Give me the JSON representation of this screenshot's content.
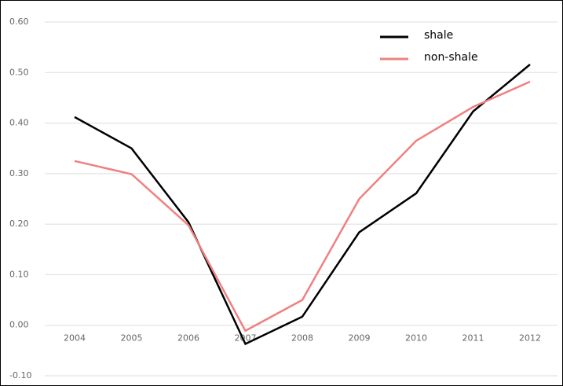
{
  "chart_data": {
    "type": "line",
    "categories": [
      "2004",
      "2005",
      "2006",
      "2007",
      "2008",
      "2009",
      "2010",
      "2011",
      "2012"
    ],
    "series": [
      {
        "name": "shale",
        "color": "#000000",
        "values": [
          0.412,
          0.35,
          0.204,
          -0.037,
          0.017,
          0.184,
          0.261,
          0.423,
          0.516
        ]
      },
      {
        "name": "non-shale",
        "color": "#f08080",
        "values": [
          0.325,
          0.299,
          0.198,
          -0.011,
          0.05,
          0.25,
          0.365,
          0.432,
          0.482
        ]
      }
    ],
    "ylim": [
      -0.1,
      0.6
    ],
    "yticks": [
      {
        "value": -0.1,
        "label": "-0.10"
      },
      {
        "value": 0,
        "label": "0.00"
      },
      {
        "value": 0.1,
        "label": "0.10"
      },
      {
        "value": 0.2,
        "label": "0.20"
      },
      {
        "value": 0.3,
        "label": "0.30"
      },
      {
        "value": 0.4,
        "label": "0.40"
      },
      {
        "value": 0.5,
        "label": "0.50"
      },
      {
        "value": 0.6,
        "label": "0.60"
      }
    ],
    "grid": true,
    "legend": "top-right"
  }
}
